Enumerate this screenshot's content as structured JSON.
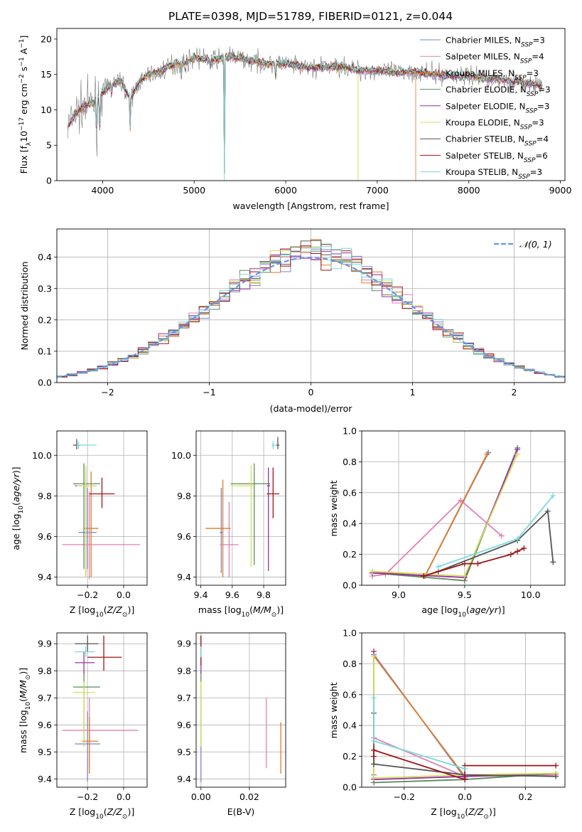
{
  "figure": {
    "title": "PLATE=0398, MJD=51789, FIBERID=0121, z=0.044"
  },
  "models": [
    {
      "name": "Chabrier MILES",
      "nssp": "3",
      "color": "#7a84c9"
    },
    {
      "name": "Salpeter MILES",
      "nssp": "4",
      "color": "#e37fb5"
    },
    {
      "name": "Kroupa MILES",
      "nssp": "3",
      "color": "#e07b27"
    },
    {
      "name": "Chabrier ELODIE",
      "nssp": "3",
      "color": "#5a8b5a"
    },
    {
      "name": "Salpeter ELODIE",
      "nssp": "3",
      "color": "#9c2fa3"
    },
    {
      "name": "Kroupa ELODIE",
      "nssp": "3",
      "color": "#d4e05a"
    },
    {
      "name": "Chabrier STELIB",
      "nssp": "4",
      "color": "#555555"
    },
    {
      "name": "Salpeter STELIB",
      "nssp": "6",
      "color": "#a01414"
    },
    {
      "name": "Kroupa STELIB",
      "nssp": "3",
      "color": "#7dd8dc"
    }
  ],
  "chart_data": [
    {
      "id": "spectrum",
      "type": "line",
      "xlabel": "wavelength [Angstrom, rest frame]",
      "ylabel": "Flux [f_λ 10^-17 erg cm^-2 s^-1 A^-1]",
      "xlim": [
        3500,
        9050
      ],
      "ylim": [
        0,
        21.5
      ],
      "xticks": [
        4000,
        5000,
        6000,
        7000,
        8000,
        9000
      ],
      "yticks": [
        0,
        5,
        10,
        15,
        20
      ],
      "data_color": "#777777",
      "spectrum_x": [
        3620,
        3700,
        3800,
        3900,
        4000,
        4100,
        4200,
        4300,
        4400,
        4500,
        4600,
        4700,
        4800,
        4900,
        5000,
        5100,
        5200,
        5300,
        5400,
        5600,
        5800,
        6000,
        6200,
        6400,
        6600,
        6800,
        7000,
        7200,
        7400,
        7600,
        7800,
        8000,
        8200,
        8400,
        8600,
        8800
      ],
      "spectrum_y": [
        7.5,
        9.5,
        10.5,
        11.0,
        12.5,
        13.5,
        14.2,
        11.5,
        14.0,
        15.0,
        15.2,
        16.0,
        16.5,
        16.5,
        17.5,
        17.2,
        17.0,
        17.3,
        17.5,
        17.0,
        16.5,
        16.5,
        16.0,
        16.0,
        16.2,
        15.6,
        15.6,
        15.3,
        15.4,
        15.0,
        14.8,
        14.8,
        14.4,
        14.2,
        13.8,
        13.4
      ],
      "legend_loc": "upper right"
    },
    {
      "id": "residuals",
      "type": "histogram",
      "xlabel": "(data-model)/error",
      "ylabel": "Normed distribution",
      "xlim": [
        -2.5,
        2.5
      ],
      "ylim": [
        0,
        0.49
      ],
      "xticks": [
        -2,
        -1,
        0,
        1,
        2
      ],
      "yticks": [
        0.0,
        0.1,
        0.2,
        0.3,
        0.4
      ],
      "bin_width": 0.1,
      "gaussian_label": "𝒩(0, 1)",
      "gaussian_color": "#6495ed",
      "legend_loc": "upper right",
      "grid": true
    },
    {
      "id": "age_vs_Z",
      "type": "errorbar",
      "xlabel": "Z [log10(Z/Z⊙)]",
      "ylabel": "age  [log10(age/yr)]",
      "xlim": [
        -0.37,
        0.13
      ],
      "ylim": [
        9.36,
        10.12
      ],
      "xticks": [
        -0.2,
        0.0
      ],
      "yticks": [
        9.4,
        9.6,
        9.8,
        10.0
      ],
      "points": [
        {
          "x": -0.2,
          "xerr": [
            0.05,
            0.05
          ],
          "y": 9.62,
          "yerr": [
            0.18,
            0.22
          ]
        },
        {
          "x": -0.19,
          "xerr": [
            0.15,
            0.28
          ],
          "y": 9.56,
          "yerr": [
            0.17,
            0.26
          ]
        },
        {
          "x": -0.18,
          "xerr": [
            0.04,
            0.04
          ],
          "y": 9.64,
          "yerr": [
            0.24,
            0.28
          ]
        },
        {
          "x": -0.22,
          "xerr": [
            0.06,
            0.09
          ],
          "y": 9.86,
          "yerr": [
            0.42,
            0.1
          ]
        },
        {
          "x": -0.21,
          "xerr": [
            0.06,
            0.06
          ],
          "y": 9.85,
          "yerr": [
            0.44,
            0.08
          ]
        },
        {
          "x": -0.21,
          "xerr": [
            0.05,
            0.06
          ],
          "y": 9.85,
          "yerr": [
            0.45,
            0.1
          ]
        },
        {
          "x": -0.26,
          "xerr": [
            0.02,
            0.02
          ],
          "y": 10.05,
          "yerr": [
            0.02,
            0.03
          ]
        },
        {
          "x": -0.12,
          "xerr": [
            0.07,
            0.07
          ],
          "y": 9.81,
          "yerr": [
            0.07,
            0.08
          ]
        },
        {
          "x": -0.25,
          "xerr": [
            0.01,
            0.1
          ],
          "y": 10.05,
          "yerr": [
            0.02,
            0.02
          ]
        }
      ]
    },
    {
      "id": "age_vs_mass",
      "type": "errorbar",
      "xlabel": "mass [log10(M/M⊙)]",
      "ylabel": "",
      "xlim": [
        9.37,
        9.94
      ],
      "ylim": [
        9.36,
        10.12
      ],
      "xticks": [
        9.4,
        9.6,
        9.8
      ],
      "yticks": [
        9.4,
        9.6,
        9.8,
        10.0
      ],
      "points": [
        {
          "x": 9.53,
          "xerr": [
            0.01,
            0.01
          ],
          "y": 9.62,
          "yerr": [
            0.2,
            0.22
          ]
        },
        {
          "x": 9.58,
          "xerr": [
            0.06,
            0.06
          ],
          "y": 9.56,
          "yerr": [
            0.16,
            0.21
          ]
        },
        {
          "x": 9.54,
          "xerr": [
            0.11,
            0.05
          ],
          "y": 9.64,
          "yerr": [
            0.24,
            0.24
          ]
        },
        {
          "x": 9.74,
          "xerr": [
            0.15,
            0.1
          ],
          "y": 9.86,
          "yerr": [
            0.4,
            0.1
          ]
        },
        {
          "x": 9.83,
          "xerr": [
            0.01,
            0.01
          ],
          "y": 9.85,
          "yerr": [
            0.42,
            0.09
          ]
        },
        {
          "x": 9.72,
          "xerr": [
            0.13,
            0.02
          ],
          "y": 9.85,
          "yerr": [
            0.4,
            0.1
          ]
        },
        {
          "x": 9.89,
          "xerr": [
            0.01,
            0.01
          ],
          "y": 10.05,
          "yerr": [
            0.02,
            0.04
          ]
        },
        {
          "x": 9.86,
          "xerr": [
            0.04,
            0.04
          ],
          "y": 9.81,
          "yerr": [
            0.12,
            0.13
          ]
        },
        {
          "x": 9.86,
          "xerr": [
            0.01,
            0.02
          ],
          "y": 10.05,
          "yerr": [
            0.02,
            0.02
          ]
        }
      ]
    },
    {
      "id": "mass_weight_vs_age",
      "type": "line",
      "xlabel": "age  [log10(age/yr)]",
      "ylabel": "mass weight",
      "xlim": [
        8.72,
        10.26
      ],
      "ylim": [
        0,
        1.0
      ],
      "xticks": [
        9.0,
        9.5,
        10.0
      ],
      "yticks": [
        0.0,
        0.2,
        0.4,
        0.6,
        0.8,
        1.0
      ],
      "series": [
        {
          "model": 0,
          "x": [
            8.8,
            9.2,
            9.68
          ],
          "y": [
            0.08,
            0.06,
            0.86
          ]
        },
        {
          "model": 1,
          "x": [
            8.8,
            8.9,
            9.47,
            9.78
          ],
          "y": [
            0.06,
            0.07,
            0.55,
            0.32
          ]
        },
        {
          "model": 2,
          "x": [
            8.8,
            9.2,
            9.67
          ],
          "y": [
            0.09,
            0.06,
            0.85
          ]
        },
        {
          "model": 3,
          "x": [
            8.8,
            9.5,
            9.9
          ],
          "y": [
            0.08,
            0.03,
            0.89
          ]
        },
        {
          "model": 4,
          "x": [
            8.8,
            9.5,
            9.9
          ],
          "y": [
            0.08,
            0.05,
            0.88
          ]
        },
        {
          "model": 5,
          "x": [
            8.8,
            9.5,
            9.9
          ],
          "y": [
            0.09,
            0.06,
            0.85
          ]
        },
        {
          "model": 6,
          "x": [
            9.19,
            9.3,
            9.9,
            10.13,
            10.17
          ],
          "y": [
            0.06,
            0.09,
            0.29,
            0.48,
            0.15
          ]
        },
        {
          "model": 7,
          "x": [
            9.19,
            9.5,
            9.6,
            9.85,
            9.9,
            9.95
          ],
          "y": [
            0.06,
            0.14,
            0.14,
            0.2,
            0.22,
            0.24
          ]
        },
        {
          "model": 8,
          "x": [
            9.3,
            9.9,
            10.17
          ],
          "y": [
            0.12,
            0.3,
            0.58
          ]
        }
      ]
    },
    {
      "id": "mass_vs_Z",
      "type": "errorbar",
      "xlabel": "Z [log10(Z/Z⊙)]",
      "ylabel": "mass [log10(M/M⊙)]",
      "xlim": [
        -0.37,
        0.13
      ],
      "ylim": [
        9.37,
        9.94
      ],
      "xticks": [
        -0.2,
        0.0
      ],
      "yticks": [
        9.4,
        9.5,
        9.6,
        9.7,
        9.8,
        9.9
      ],
      "points": [
        {
          "x": -0.2,
          "xerr": [
            0.07,
            0.07
          ],
          "y": 9.53,
          "yerr": [
            0.14,
            0.12
          ]
        },
        {
          "x": -0.19,
          "xerr": [
            0.15,
            0.27
          ],
          "y": 9.58,
          "yerr": [
            0.14,
            0.12
          ]
        },
        {
          "x": -0.19,
          "xerr": [
            0.04,
            0.05
          ],
          "y": 9.54,
          "yerr": [
            0.12,
            0.09
          ]
        },
        {
          "x": -0.22,
          "xerr": [
            0.06,
            0.09
          ],
          "y": 9.74,
          "yerr": [
            0.22,
            0.06
          ]
        },
        {
          "x": -0.22,
          "xerr": [
            0.05,
            0.06
          ],
          "y": 9.83,
          "yerr": [
            0.04,
            0.04
          ]
        },
        {
          "x": -0.22,
          "xerr": [
            0.06,
            0.06
          ],
          "y": 9.72,
          "yerr": [
            0.2,
            0.04
          ]
        },
        {
          "x": -0.2,
          "xerr": [
            0.07,
            0.06
          ],
          "y": 9.9,
          "yerr": [
            0.03,
            0.03
          ]
        },
        {
          "x": -0.11,
          "xerr": [
            0.09,
            0.1
          ],
          "y": 9.85,
          "yerr": [
            0.05,
            0.08
          ]
        },
        {
          "x": -0.21,
          "xerr": [
            0.06,
            0.05
          ],
          "y": 9.87,
          "yerr": [
            0.02,
            0.02
          ]
        }
      ]
    },
    {
      "id": "mass_vs_ebv",
      "type": "errorbar",
      "xlabel": "E(B-V)",
      "ylabel": "",
      "xlim": [
        -0.002,
        0.035
      ],
      "ylim": [
        9.37,
        9.94
      ],
      "xticks": [
        0.0,
        0.02
      ],
      "yticks": [
        9.4,
        9.5,
        9.6,
        9.7,
        9.8,
        9.9
      ],
      "points": [
        {
          "x": 0.0,
          "xerr": [
            0,
            0
          ],
          "y": 9.53,
          "yerr": [
            0.14,
            0.12
          ]
        },
        {
          "x": 0.027,
          "xerr": [
            0,
            0
          ],
          "y": 9.58,
          "yerr": [
            0.14,
            0.12
          ]
        },
        {
          "x": 0.033,
          "xerr": [
            0,
            0
          ],
          "y": 9.54,
          "yerr": [
            0.12,
            0.07
          ]
        },
        {
          "x": 0.0,
          "xerr": [
            0,
            0
          ],
          "y": 9.74,
          "yerr": [
            0.22,
            0.06
          ]
        },
        {
          "x": 0.0,
          "xerr": [
            0,
            0
          ],
          "y": 9.83,
          "yerr": [
            0.04,
            0.04
          ]
        },
        {
          "x": 0.0,
          "xerr": [
            0,
            0
          ],
          "y": 9.72,
          "yerr": [
            0.2,
            0.04
          ]
        },
        {
          "x": 0.0,
          "xerr": [
            0,
            0
          ],
          "y": 9.9,
          "yerr": [
            0.03,
            0.03
          ]
        },
        {
          "x": 0.0,
          "xerr": [
            0,
            0
          ],
          "y": 9.87,
          "yerr": [
            0.05,
            0.06
          ]
        },
        {
          "x": 0.0,
          "xerr": [
            0,
            0
          ],
          "y": 9.87,
          "yerr": [
            0.02,
            0.02
          ]
        }
      ]
    },
    {
      "id": "mass_weight_vs_Z",
      "type": "line",
      "xlabel": "Z [log10(Z/Z⊙)]",
      "ylabel": "mass weight",
      "xlim": [
        -0.34,
        0.33
      ],
      "ylim": [
        0,
        1.0
      ],
      "xticks": [
        -0.2,
        0.0,
        0.2
      ],
      "yticks": [
        0.0,
        0.2,
        0.4,
        0.6,
        0.8,
        1.0
      ],
      "series": [
        {
          "model": 0,
          "x": [
            -0.3,
            -0.3,
            0.0
          ],
          "y": [
            0.08,
            0.86,
            0.06
          ]
        },
        {
          "model": 1,
          "x": [
            -0.3,
            -0.3,
            0.0,
            0.3
          ],
          "y": [
            0.06,
            0.32,
            0.07,
            0.08
          ]
        },
        {
          "model": 2,
          "x": [
            -0.3,
            -0.3,
            0.0
          ],
          "y": [
            0.06,
            0.85,
            0.07
          ]
        },
        {
          "model": 3,
          "x": [
            -0.3,
            0.0,
            0.3
          ],
          "y": [
            0.03,
            0.05,
            0.09
          ]
        },
        {
          "model": 4,
          "x": [
            -0.3,
            -0.3,
            0.0,
            0.3
          ],
          "y": [
            0.88,
            0.05,
            0.07,
            0.09
          ]
        },
        {
          "model": 5,
          "x": [
            -0.3,
            -0.3,
            0.0,
            0.3
          ],
          "y": [
            0.85,
            0.06,
            0.08,
            0.09
          ]
        },
        {
          "model": 6,
          "x": [
            -0.3,
            -0.3,
            0.0,
            0.3
          ],
          "y": [
            0.48,
            0.15,
            0.08,
            0.07
          ]
        },
        {
          "model": 7,
          "x": [
            -0.3,
            -0.3,
            0.0,
            0.0,
            0.3
          ],
          "y": [
            0.2,
            0.24,
            0.05,
            0.14,
            0.14
          ]
        },
        {
          "model": 8,
          "x": [
            -0.3,
            -0.3,
            0.0
          ],
          "y": [
            0.58,
            0.3,
            0.12
          ]
        }
      ]
    }
  ]
}
